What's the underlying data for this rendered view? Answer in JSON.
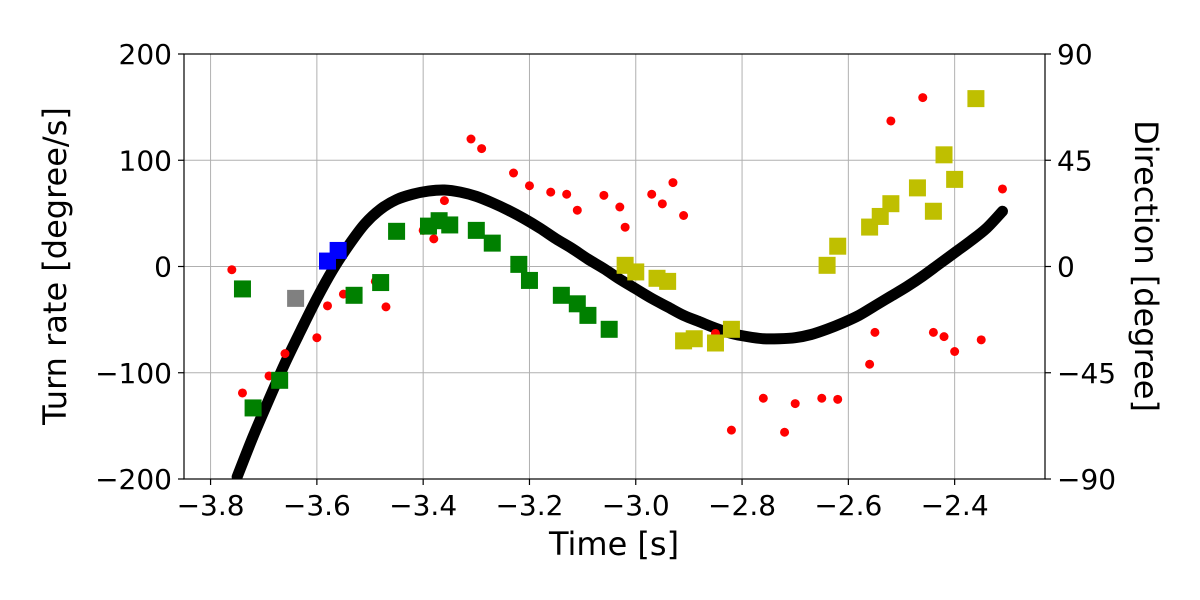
{
  "chart_data": {
    "type": "scatter",
    "title": "",
    "xlabel": "Time [s]",
    "ylabel_left": "Turn rate [degree/s]",
    "ylabel_right": "Direction [degree]",
    "xlim": [
      -3.85,
      -2.23
    ],
    "ylim_left": [
      -200,
      200
    ],
    "ylim_right": [
      -90,
      90
    ],
    "x_ticks": [
      -3.8,
      -3.6,
      -3.4,
      -3.2,
      -3.0,
      -2.8,
      -2.6,
      -2.4
    ],
    "x_tick_labels": [
      "−3.8",
      "−3.6",
      "−3.4",
      "−3.2",
      "−3.0",
      "−2.8",
      "−2.6",
      "−2.4"
    ],
    "y_left_ticks": [
      -200,
      -100,
      0,
      100,
      200
    ],
    "y_left_tick_labels": [
      "−200",
      "−100",
      "0",
      "100",
      "200"
    ],
    "y_right_ticks": [
      -90,
      -45,
      0,
      45,
      90
    ],
    "y_right_tick_labels": [
      "−90",
      "−45",
      "0",
      "45",
      "90"
    ],
    "grid": true,
    "colors": {
      "curve": "#000000",
      "red_points": "#ff0000",
      "green_squares": "#008000",
      "yellow_squares": "#bfbf00",
      "blue_squares": "#0000ff",
      "gray_squares": "#808080"
    },
    "curve": {
      "axis": "left",
      "x": [
        -3.75,
        -3.72,
        -3.69,
        -3.66,
        -3.63,
        -3.6,
        -3.57,
        -3.54,
        -3.51,
        -3.48,
        -3.45,
        -3.42,
        -3.39,
        -3.36,
        -3.33,
        -3.3,
        -3.27,
        -3.24,
        -3.21,
        -3.18,
        -3.15,
        -3.12,
        -3.09,
        -3.06,
        -3.03,
        -3.0,
        -2.97,
        -2.94,
        -2.91,
        -2.88,
        -2.85,
        -2.82,
        -2.79,
        -2.76,
        -2.73,
        -2.7,
        -2.67,
        -2.64,
        -2.61,
        -2.58,
        -2.55,
        -2.52,
        -2.49,
        -2.46,
        -2.43,
        -2.4,
        -2.37,
        -2.34,
        -2.31
      ],
      "y": [
        -198,
        -160,
        -125,
        -91,
        -60,
        -30,
        -3,
        20,
        40,
        54,
        63,
        68,
        71,
        72,
        70,
        66,
        60,
        53,
        45,
        36,
        26,
        17,
        7,
        -2,
        -12,
        -21,
        -30,
        -38,
        -46,
        -52,
        -58,
        -63,
        -66,
        -68,
        -68,
        -67,
        -64,
        -59,
        -53,
        -46,
        -37,
        -28,
        -19,
        -9,
        2,
        13,
        24,
        36,
        52
      ]
    },
    "turn_rate_points": {
      "axis": "left",
      "x": [
        -3.76,
        -3.74,
        -3.69,
        -3.66,
        -3.6,
        -3.58,
        -3.55,
        -3.49,
        -3.47,
        -3.4,
        -3.38,
        -3.36,
        -3.31,
        -3.29,
        -3.23,
        -3.2,
        -3.16,
        -3.13,
        -3.11,
        -3.06,
        -3.03,
        -3.02,
        -2.97,
        -2.95,
        -2.93,
        -2.91,
        -2.85,
        -2.82,
        -2.76,
        -2.72,
        -2.7,
        -2.65,
        -2.62,
        -2.56,
        -2.55,
        -2.52,
        -2.46,
        -2.44,
        -2.42,
        -2.4,
        -2.35,
        -2.31
      ],
      "y": [
        -3,
        -119,
        -103,
        -82,
        -67,
        -37,
        -26,
        -14,
        -38,
        34,
        26,
        62,
        120,
        111,
        88,
        76,
        70,
        68,
        53,
        67,
        56,
        37,
        68,
        59,
        79,
        48,
        -63,
        -154,
        -124,
        -156,
        -129,
        -124,
        -125,
        -92,
        -62,
        137,
        159,
        -62,
        -66,
        -80,
        -69,
        73
      ]
    },
    "direction_squares": {
      "axis": "right",
      "series": [
        {
          "color": "gray",
          "x": [
            -3.64
          ],
          "y": [
            -13.5
          ]
        },
        {
          "color": "blue",
          "x": [
            -3.58,
            -3.56
          ],
          "y": [
            2.3,
            6.8
          ]
        },
        {
          "color": "green",
          "x": [
            -3.74,
            -3.72,
            -3.67,
            -3.53,
            -3.48,
            -3.45,
            -3.39,
            -3.37,
            -3.35,
            -3.3,
            -3.27,
            -3.22,
            -3.2,
            -3.14,
            -3.11,
            -3.09,
            -3.05
          ],
          "y": [
            -9.5,
            -59.9,
            -48.2,
            -12.2,
            -6.8,
            14.9,
            17.1,
            19.4,
            17.6,
            15.3,
            9.9,
            0.9,
            -5.9,
            -12.2,
            -15.8,
            -20.7,
            -26.6
          ]
        },
        {
          "color": "yellow",
          "x": [
            -3.02,
            -3.0,
            -2.96,
            -2.94,
            -2.91,
            -2.89,
            -2.85,
            -2.82,
            -2.64,
            -2.62,
            -2.56,
            -2.54,
            -2.52,
            -2.47,
            -2.44,
            -2.42,
            -2.4,
            -2.36
          ],
          "y": [
            0.5,
            -2.3,
            -5.0,
            -6.3,
            -31.5,
            -30.6,
            -32.4,
            -26.6,
            0.5,
            8.6,
            16.7,
            21.2,
            26.6,
            33.3,
            23.4,
            47.3,
            36.9,
            71.1
          ]
        }
      ]
    }
  }
}
